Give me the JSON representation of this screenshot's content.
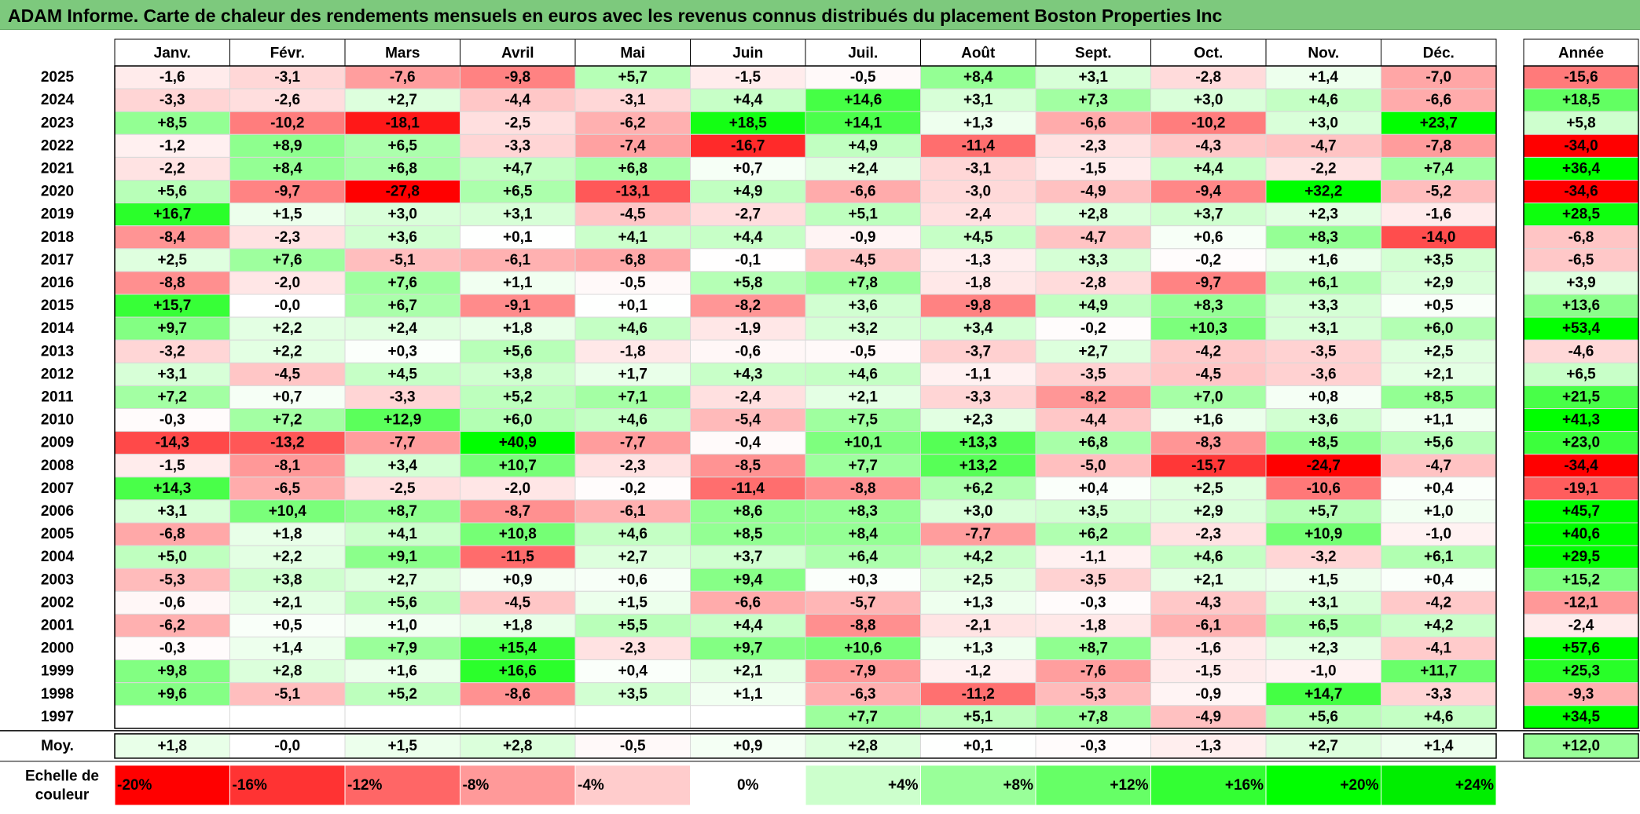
{
  "title": "ADAM Informe. Carte de chaleur des rendements mensuels en euros avec les revenus connus distribués du placement Boston Properties Inc",
  "chart_data": {
    "type": "heatmap",
    "title": "ADAM Informe. Carte de chaleur des rendements mensuels en euros avec les revenus connus distribués du placement Boston Properties Inc",
    "months": [
      "Janv.",
      "Févr.",
      "Mars",
      "Avril",
      "Mai",
      "Juin",
      "Juil.",
      "Août",
      "Sept.",
      "Oct.",
      "Nov.",
      "Déc."
    ],
    "year_column_label": "Année",
    "rows": [
      {
        "year": "2025",
        "values": [
          "-1,6",
          "-3,1",
          "-7,6",
          "-9,8",
          "+5,7",
          "-1,5",
          "-0,5",
          "+8,4",
          "+3,1",
          "-2,8",
          "+1,4",
          "-7,0"
        ],
        "annual": "-15,6"
      },
      {
        "year": "2024",
        "values": [
          "-3,3",
          "-2,6",
          "+2,7",
          "-4,4",
          "-3,1",
          "+4,4",
          "+14,6",
          "+3,1",
          "+7,3",
          "+3,0",
          "+4,6",
          "-6,6"
        ],
        "annual": "+18,5"
      },
      {
        "year": "2023",
        "values": [
          "+8,5",
          "-10,2",
          "-18,1",
          "-2,5",
          "-6,2",
          "+18,5",
          "+14,1",
          "+1,3",
          "-6,6",
          "-10,2",
          "+3,0",
          "+23,7"
        ],
        "annual": "+5,8"
      },
      {
        "year": "2022",
        "values": [
          "-1,2",
          "+8,9",
          "+6,5",
          "-3,3",
          "-7,4",
          "-16,7",
          "+4,9",
          "-11,4",
          "-2,3",
          "-4,3",
          "-4,7",
          "-7,8"
        ],
        "annual": "-34,0"
      },
      {
        "year": "2021",
        "values": [
          "-2,2",
          "+8,4",
          "+6,8",
          "+4,7",
          "+6,8",
          "+0,7",
          "+2,4",
          "-3,1",
          "-1,5",
          "+4,4",
          "-2,2",
          "+7,4"
        ],
        "annual": "+36,4"
      },
      {
        "year": "2020",
        "values": [
          "+5,6",
          "-9,7",
          "-27,8",
          "+6,5",
          "-13,1",
          "+4,9",
          "-6,6",
          "-3,0",
          "-4,9",
          "-9,4",
          "+32,2",
          "-5,2"
        ],
        "annual": "-34,6"
      },
      {
        "year": "2019",
        "values": [
          "+16,7",
          "+1,5",
          "+3,0",
          "+3,1",
          "-4,5",
          "-2,7",
          "+5,1",
          "-2,4",
          "+2,8",
          "+3,7",
          "+2,3",
          "-1,6"
        ],
        "annual": "+28,5"
      },
      {
        "year": "2018",
        "values": [
          "-8,4",
          "-2,3",
          "+3,6",
          "+0,1",
          "+4,1",
          "+4,4",
          "-0,9",
          "+4,5",
          "-4,7",
          "+0,6",
          "+8,3",
          "-14,0"
        ],
        "annual": "-6,8"
      },
      {
        "year": "2017",
        "values": [
          "+2,5",
          "+7,6",
          "-5,1",
          "-6,1",
          "-6,8",
          "-0,1",
          "-4,5",
          "-1,3",
          "+3,3",
          "-0,2",
          "+1,6",
          "+3,5"
        ],
        "annual": "-6,5"
      },
      {
        "year": "2016",
        "values": [
          "-8,8",
          "-2,0",
          "+7,6",
          "+1,1",
          "-0,5",
          "+5,8",
          "+7,8",
          "-1,8",
          "-2,8",
          "-9,7",
          "+6,1",
          "+2,9"
        ],
        "annual": "+3,9"
      },
      {
        "year": "2015",
        "values": [
          "+15,7",
          "-0,0",
          "+6,7",
          "-9,1",
          "+0,1",
          "-8,2",
          "+3,6",
          "-9,8",
          "+4,9",
          "+8,3",
          "+3,3",
          "+0,5"
        ],
        "annual": "+13,6"
      },
      {
        "year": "2014",
        "values": [
          "+9,7",
          "+2,2",
          "+2,4",
          "+1,8",
          "+4,6",
          "-1,9",
          "+3,2",
          "+3,4",
          "-0,2",
          "+10,3",
          "+3,1",
          "+6,0"
        ],
        "annual": "+53,4"
      },
      {
        "year": "2013",
        "values": [
          "-3,2",
          "+2,2",
          "+0,3",
          "+5,6",
          "-1,8",
          "-0,6",
          "-0,5",
          "-3,7",
          "+2,7",
          "-4,2",
          "-3,5",
          "+2,5"
        ],
        "annual": "-4,6"
      },
      {
        "year": "2012",
        "values": [
          "+3,1",
          "-4,5",
          "+4,5",
          "+3,8",
          "+1,7",
          "+4,3",
          "+4,6",
          "-1,1",
          "-3,5",
          "-4,5",
          "-3,6",
          "+2,1"
        ],
        "annual": "+6,5"
      },
      {
        "year": "2011",
        "values": [
          "+7,2",
          "+0,7",
          "-3,3",
          "+5,2",
          "+7,1",
          "-2,4",
          "+2,1",
          "-3,3",
          "-8,2",
          "+7,0",
          "+0,8",
          "+8,5"
        ],
        "annual": "+21,5"
      },
      {
        "year": "2010",
        "values": [
          "-0,3",
          "+7,2",
          "+12,9",
          "+6,0",
          "+4,6",
          "-5,4",
          "+7,5",
          "+2,3",
          "-4,4",
          "+1,6",
          "+3,6",
          "+1,1"
        ],
        "annual": "+41,3"
      },
      {
        "year": "2009",
        "values": [
          "-14,3",
          "-13,2",
          "-7,7",
          "+40,9",
          "-7,7",
          "-0,4",
          "+10,1",
          "+13,3",
          "+6,8",
          "-8,3",
          "+8,5",
          "+5,6"
        ],
        "annual": "+23,0"
      },
      {
        "year": "2008",
        "values": [
          "-1,5",
          "-8,1",
          "+3,4",
          "+10,7",
          "-2,3",
          "-8,5",
          "+7,7",
          "+13,2",
          "-5,0",
          "-15,7",
          "-24,7",
          "-4,7"
        ],
        "annual": "-34,4"
      },
      {
        "year": "2007",
        "values": [
          "+14,3",
          "-6,5",
          "-2,5",
          "-2,0",
          "-0,2",
          "-11,4",
          "-8,8",
          "+6,2",
          "+0,4",
          "+2,5",
          "-10,6",
          "+0,4"
        ],
        "annual": "-19,1"
      },
      {
        "year": "2006",
        "values": [
          "+3,1",
          "+10,4",
          "+8,7",
          "-8,7",
          "-6,1",
          "+8,6",
          "+8,3",
          "+3,0",
          "+3,5",
          "+2,9",
          "+5,7",
          "+1,0"
        ],
        "annual": "+45,7"
      },
      {
        "year": "2005",
        "values": [
          "-6,8",
          "+1,8",
          "+4,1",
          "+10,8",
          "+4,6",
          "+8,5",
          "+8,4",
          "-7,7",
          "+6,2",
          "-2,3",
          "+10,9",
          "-1,0"
        ],
        "annual": "+40,6"
      },
      {
        "year": "2004",
        "values": [
          "+5,0",
          "+2,2",
          "+9,1",
          "-11,5",
          "+2,7",
          "+3,7",
          "+6,4",
          "+4,2",
          "-1,1",
          "+4,6",
          "-3,2",
          "+6,1"
        ],
        "annual": "+29,5"
      },
      {
        "year": "2003",
        "values": [
          "-5,3",
          "+3,8",
          "+2,7",
          "+0,9",
          "+0,6",
          "+9,4",
          "+0,3",
          "+2,5",
          "-3,5",
          "+2,1",
          "+1,5",
          "+0,4"
        ],
        "annual": "+15,2"
      },
      {
        "year": "2002",
        "values": [
          "-0,6",
          "+2,1",
          "+5,6",
          "-4,5",
          "+1,5",
          "-6,6",
          "-5,7",
          "+1,3",
          "-0,3",
          "-4,3",
          "+3,1",
          "-4,2"
        ],
        "annual": "-12,1"
      },
      {
        "year": "2001",
        "values": [
          "-6,2",
          "+0,5",
          "+1,0",
          "+1,8",
          "+5,5",
          "+4,4",
          "-8,8",
          "-2,1",
          "-1,8",
          "-6,1",
          "+6,5",
          "+4,2"
        ],
        "annual": "-2,4"
      },
      {
        "year": "2000",
        "values": [
          "-0,3",
          "+1,4",
          "+7,9",
          "+15,4",
          "-2,3",
          "+9,7",
          "+10,6",
          "+1,3",
          "+8,7",
          "-1,6",
          "+2,3",
          "-4,1"
        ],
        "annual": "+57,6"
      },
      {
        "year": "1999",
        "values": [
          "+9,8",
          "+2,8",
          "+1,6",
          "+16,6",
          "+0,4",
          "+2,1",
          "-7,9",
          "-1,2",
          "-7,6",
          "-1,5",
          "-1,0",
          "+11,7"
        ],
        "annual": "+25,3"
      },
      {
        "year": "1998",
        "values": [
          "+9,6",
          "-5,1",
          "+5,2",
          "-8,6",
          "+3,5",
          "+1,1",
          "-6,3",
          "-11,2",
          "-5,3",
          "-0,9",
          "+14,7",
          "-3,3"
        ],
        "annual": "-9,3"
      },
      {
        "year": "1997",
        "values": [
          "",
          "",
          "",
          "",
          "",
          "",
          "+7,7",
          "+5,1",
          "+7,8",
          "-4,9",
          "+5,6",
          "+4,6"
        ],
        "annual": "+34,5"
      }
    ],
    "average": {
      "label": "Moy.",
      "values": [
        "+1,8",
        "-0,0",
        "+1,5",
        "+2,8",
        "-0,5",
        "+0,9",
        "+2,8",
        "+0,1",
        "-0,3",
        "-1,3",
        "+2,7",
        "+1,4"
      ],
      "annual": "+12,0"
    },
    "scale": {
      "label_line1": "Echelle de",
      "label_line2": "couleur",
      "stops": [
        {
          "label": "-20%",
          "color": "#ff0000"
        },
        {
          "label": "-16%",
          "color": "#ff3333"
        },
        {
          "label": "-12%",
          "color": "#ff6666"
        },
        {
          "label": "-8%",
          "color": "#ff9999"
        },
        {
          "label": "-4%",
          "color": "#ffcccc"
        },
        {
          "label": "0%",
          "color": "#ffffff"
        },
        {
          "label": "+4%",
          "color": "#ccffcc"
        },
        {
          "label": "+8%",
          "color": "#99ff99"
        },
        {
          "label": "+12%",
          "color": "#66ff66"
        },
        {
          "label": "+16%",
          "color": "#33ff33"
        },
        {
          "label": "+20%",
          "color": "#00ff00"
        },
        {
          "label": "+24%",
          "color": "#00ee00"
        }
      ]
    },
    "colors": {
      "negative": "#ff0000",
      "zero": "#ffffff",
      "positive": "#00ff00",
      "banner": "#7dc97d"
    }
  }
}
